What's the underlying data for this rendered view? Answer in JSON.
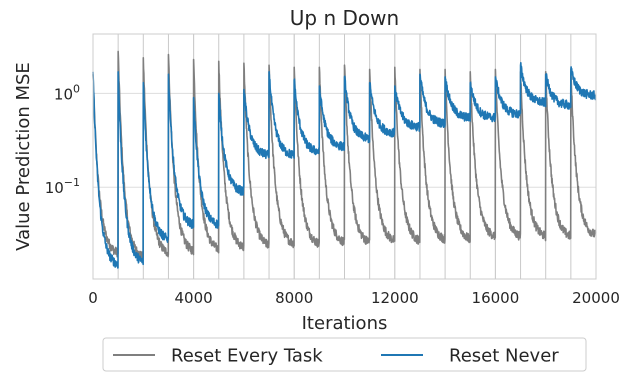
{
  "chart_data": {
    "type": "line",
    "title": "Up n Down",
    "xlabel": "Iterations",
    "ylabel": "Value Prediction MSE",
    "xlim": [
      0,
      20000
    ],
    "ylim": [
      0.0105,
      4.3
    ],
    "yscale": "log",
    "grid": true,
    "legend_position": "bottom-center",
    "x_ticks": [
      0,
      4000,
      8000,
      12000,
      16000,
      20000
    ],
    "x_tick_labels": [
      "0",
      "4000",
      "8000",
      "12000",
      "16000",
      "20000"
    ],
    "y_ticks": [
      1,
      0.1
    ],
    "y_tick_labels": [
      "10^0",
      "10^-1"
    ],
    "task_boundaries": [
      1000,
      2000,
      3000,
      4000,
      5000,
      6000,
      7000,
      8000,
      9000,
      10000,
      11000,
      12000,
      13000,
      14000,
      15000,
      16000,
      17000,
      18000,
      19000
    ],
    "series": [
      {
        "name": "Reset Every Task",
        "color": "#7f7f7f",
        "segments": [
          {
            "x_start": 0,
            "x_end": 1000,
            "y_start": 1.6,
            "y_end": 0.02
          },
          {
            "x_start": 1000,
            "x_end": 2000,
            "y_start": 2.8,
            "y_end": 0.018
          },
          {
            "x_start": 2000,
            "x_end": 3000,
            "y_start": 2.4,
            "y_end": 0.02
          },
          {
            "x_start": 3000,
            "x_end": 4000,
            "y_start": 2.6,
            "y_end": 0.021
          },
          {
            "x_start": 4000,
            "x_end": 5000,
            "y_start": 2.3,
            "y_end": 0.022
          },
          {
            "x_start": 5000,
            "x_end": 6000,
            "y_start": 2.2,
            "y_end": 0.023
          },
          {
            "x_start": 6000,
            "x_end": 7000,
            "y_start": 2.1,
            "y_end": 0.024
          },
          {
            "x_start": 7000,
            "x_end": 8000,
            "y_start": 2.0,
            "y_end": 0.025
          },
          {
            "x_start": 8000,
            "x_end": 9000,
            "y_start": 1.9,
            "y_end": 0.025
          },
          {
            "x_start": 9000,
            "x_end": 10000,
            "y_start": 1.9,
            "y_end": 0.026
          },
          {
            "x_start": 10000,
            "x_end": 11000,
            "y_start": 2.0,
            "y_end": 0.026
          },
          {
            "x_start": 11000,
            "x_end": 12000,
            "y_start": 1.8,
            "y_end": 0.027
          },
          {
            "x_start": 12000,
            "x_end": 13000,
            "y_start": 1.9,
            "y_end": 0.027
          },
          {
            "x_start": 13000,
            "x_end": 14000,
            "y_start": 1.8,
            "y_end": 0.028
          },
          {
            "x_start": 14000,
            "x_end": 15000,
            "y_start": 1.8,
            "y_end": 0.028
          },
          {
            "x_start": 15000,
            "x_end": 16000,
            "y_start": 1.7,
            "y_end": 0.03
          },
          {
            "x_start": 16000,
            "x_end": 17000,
            "y_start": 1.8,
            "y_end": 0.03
          },
          {
            "x_start": 17000,
            "x_end": 18000,
            "y_start": 1.7,
            "y_end": 0.03
          },
          {
            "x_start": 18000,
            "x_end": 19000,
            "y_start": 1.7,
            "y_end": 0.03
          },
          {
            "x_start": 19000,
            "x_end": 20000,
            "y_start": 1.7,
            "y_end": 0.031
          }
        ]
      },
      {
        "name": "Reset Never",
        "color": "#1f77b4",
        "segments": [
          {
            "x_start": 0,
            "x_end": 1000,
            "y_start": 1.7,
            "y_end": 0.015
          },
          {
            "x_start": 1000,
            "x_end": 2000,
            "y_start": 1.7,
            "y_end": 0.016
          },
          {
            "x_start": 2000,
            "x_end": 3000,
            "y_start": 1.3,
            "y_end": 0.028
          },
          {
            "x_start": 3000,
            "x_end": 4000,
            "y_start": 1.6,
            "y_end": 0.04
          },
          {
            "x_start": 4000,
            "x_end": 5000,
            "y_start": 0.9,
            "y_end": 0.04
          },
          {
            "x_start": 5000,
            "x_end": 6000,
            "y_start": 1.0,
            "y_end": 0.09
          },
          {
            "x_start": 6000,
            "x_end": 7000,
            "y_start": 1.1,
            "y_end": 0.22
          },
          {
            "x_start": 7000,
            "x_end": 8000,
            "y_start": 1.7,
            "y_end": 0.22
          },
          {
            "x_start": 8000,
            "x_end": 9000,
            "y_start": 1.4,
            "y_end": 0.24
          },
          {
            "x_start": 9000,
            "x_end": 10000,
            "y_start": 1.2,
            "y_end": 0.27
          },
          {
            "x_start": 10000,
            "x_end": 11000,
            "y_start": 1.5,
            "y_end": 0.33
          },
          {
            "x_start": 11000,
            "x_end": 12000,
            "y_start": 1.3,
            "y_end": 0.38
          },
          {
            "x_start": 12000,
            "x_end": 13000,
            "y_start": 1.2,
            "y_end": 0.44
          },
          {
            "x_start": 13000,
            "x_end": 14000,
            "y_start": 1.6,
            "y_end": 0.48
          },
          {
            "x_start": 14000,
            "x_end": 15000,
            "y_start": 1.5,
            "y_end": 0.55
          },
          {
            "x_start": 15000,
            "x_end": 16000,
            "y_start": 1.3,
            "y_end": 0.55
          },
          {
            "x_start": 16000,
            "x_end": 17000,
            "y_start": 1.5,
            "y_end": 0.6
          },
          {
            "x_start": 17000,
            "x_end": 18000,
            "y_start": 2.0,
            "y_end": 0.8
          },
          {
            "x_start": 18000,
            "x_end": 19000,
            "y_start": 1.6,
            "y_end": 0.75
          },
          {
            "x_start": 19000,
            "x_end": 20000,
            "y_start": 1.8,
            "y_end": 0.95
          }
        ]
      }
    ]
  }
}
